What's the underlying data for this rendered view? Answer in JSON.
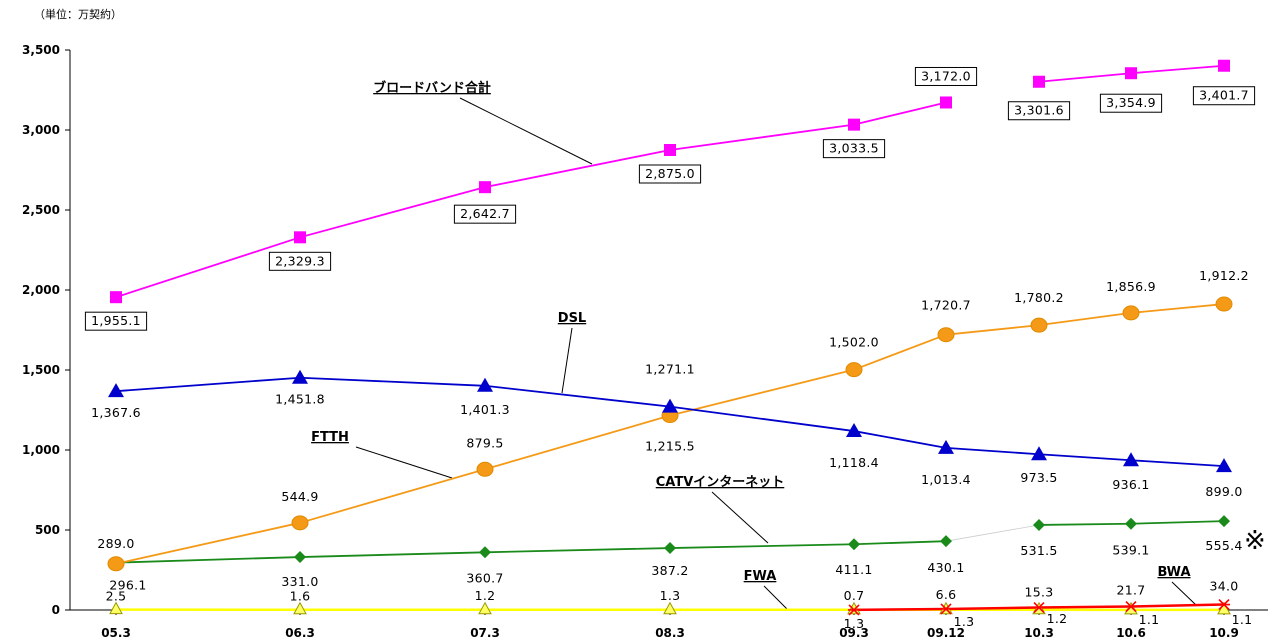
{
  "unit_label": "（単位：万契約）",
  "note_mark": "※",
  "chart_data": {
    "type": "line",
    "categories": [
      "05.3",
      "06.3",
      "07.3",
      "08.3",
      "09.3",
      "09.12",
      "10.3",
      "10.6",
      "10.9"
    ],
    "ylim": [
      0,
      3500
    ],
    "yticks": [
      "0",
      "500",
      "1,000",
      "1,500",
      "2,000",
      "2,500",
      "3,000",
      "3,500"
    ],
    "grid": false,
    "legend": "none",
    "series": [
      {
        "name": "ブロードバンド合計",
        "color": "#ff00ff",
        "marker": "square",
        "values": [
          1955.1,
          2329.3,
          2642.7,
          2875.0,
          3033.5,
          3172.0,
          3301.6,
          3354.9,
          3401.7
        ],
        "labels": [
          "1,955.1",
          "2,329.3",
          "2,642.7",
          "2,875.0",
          "3,033.5",
          "3,172.0",
          "3,301.6",
          "3,354.9",
          "3,401.7"
        ]
      },
      {
        "name": "DSL",
        "color": "#0000cc",
        "marker": "triangle",
        "values": [
          1367.6,
          1451.8,
          1401.3,
          1271.1,
          1118.4,
          1013.4,
          973.5,
          936.1,
          899.0
        ],
        "labels": [
          "1,367.6",
          "1,451.8",
          "1,401.3",
          "1,271.1",
          "1,118.4",
          "1,013.4",
          "973.5",
          "936.1",
          "899.0"
        ]
      },
      {
        "name": "FTTH",
        "color": "#f59a17",
        "marker": "circle",
        "values": [
          289.0,
          544.9,
          879.5,
          1215.5,
          1502.0,
          1720.7,
          1780.2,
          1856.9,
          1912.2
        ],
        "labels": [
          "289.0",
          "544.9",
          "879.5",
          "1,215.5",
          "1,502.0",
          "1,720.7",
          "1,780.2",
          "1,856.9",
          "1,912.2"
        ]
      },
      {
        "name": "CATVインターネット",
        "color": "#1a8a1a",
        "marker": "diamond",
        "values": [
          296.1,
          331.0,
          360.7,
          387.2,
          411.1,
          430.1,
          531.5,
          539.1,
          555.4
        ],
        "labels": [
          "296.1",
          "331.0",
          "360.7",
          "387.2",
          "411.1",
          "430.1",
          "531.5",
          "539.1",
          "555.4"
        ]
      },
      {
        "name": "FWA",
        "color": "#ffff00",
        "marker": "triangle-open",
        "values": [
          2.5,
          1.6,
          1.2,
          1.3,
          1.3,
          1.3,
          1.2,
          1.1,
          1.1
        ],
        "labels": [
          "2.5",
          "1.6",
          "1.2",
          "1.3",
          "1.3",
          "1.3",
          "1.2",
          "1.1",
          "1.1"
        ]
      },
      {
        "name": "BWA",
        "color": "#ff0000",
        "marker": "cross",
        "values": [
          null,
          null,
          null,
          null,
          0.7,
          6.6,
          15.3,
          21.7,
          34.0
        ],
        "labels": [
          "",
          "",
          "",
          "",
          "0.7",
          "6.6",
          "15.3",
          "21.7",
          "34.0"
        ]
      }
    ]
  }
}
